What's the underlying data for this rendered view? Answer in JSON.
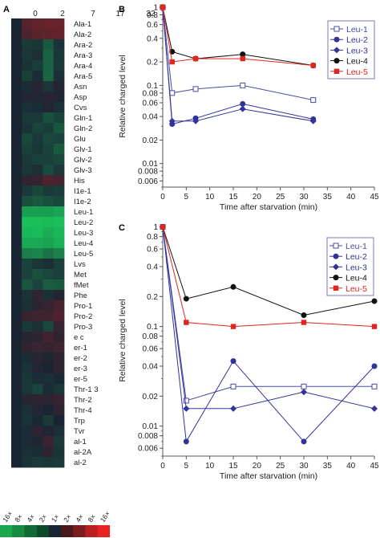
{
  "panel_letters": [
    "A",
    "B",
    "C"
  ],
  "heatmap": {
    "columns": [
      "0",
      "2",
      "7",
      "17",
      "32"
    ],
    "rows": [
      "Ala-1",
      "Ala-2",
      "Ara-2",
      "Ara-3",
      "Ara-4",
      "Ara-5",
      "Asn",
      "Asp",
      "Cvs",
      "Gln-1",
      "Gln-2",
      "Glu",
      "Glv-1",
      "Glv-2",
      "Glv-3",
      "His",
      "I1e-1",
      "I1e-2",
      "Leu-1",
      "Leu-2",
      "Leu-3",
      "Leu-4",
      "Leu-5",
      "Lvs",
      "Met",
      "fMet",
      "Phe",
      "Pro-1",
      "Pro-2",
      "Pro-3",
      "e c",
      "er-1",
      "er-2",
      "er-3",
      "er-5",
      "Thr-1 3",
      "Thr-2",
      "Thr-4",
      "Trp",
      "Tvr",
      "al-1",
      "al-2A",
      "al-2"
    ],
    "values": [
      [
        0,
        1.3,
        1.6,
        1.7,
        1.7
      ],
      [
        0,
        1.1,
        1.4,
        1.5,
        1.6
      ],
      [
        0,
        -0.6,
        -0.5,
        -1.5,
        -0.4
      ],
      [
        0,
        -0.5,
        -0.3,
        -1.8,
        -0.5
      ],
      [
        0,
        -0.4,
        -0.7,
        -1.8,
        -0.6
      ],
      [
        0,
        -0.8,
        -0.2,
        -1.9,
        -0.3
      ],
      [
        0,
        -0.2,
        0.3,
        -0.5,
        0.2
      ],
      [
        0,
        0.2,
        0.2,
        0.3,
        0.1
      ],
      [
        0,
        -0.3,
        -0.2,
        0.2,
        -0.3
      ],
      [
        0,
        -0.6,
        -0.6,
        -1.3,
        -0.9
      ],
      [
        0,
        -0.4,
        -0.9,
        -0.7,
        -1.4
      ],
      [
        0,
        -1.0,
        -0.6,
        -1.0,
        -0.9
      ],
      [
        0,
        -0.8,
        -0.5,
        -0.9,
        -1.5
      ],
      [
        0,
        -0.6,
        -0.8,
        -0.8,
        -1.0
      ],
      [
        0,
        -0.5,
        -0.3,
        -1.1,
        -0.6
      ],
      [
        0,
        0.5,
        0.6,
        1.1,
        0.9
      ],
      [
        0,
        -0.6,
        -1.0,
        -0.6,
        -0.7
      ],
      [
        0,
        -1.2,
        -1.5,
        -1.2,
        -1.0
      ],
      [
        0,
        -3.6,
        -3.6,
        -3.5,
        -3.8
      ],
      [
        0,
        -4.6,
        -4.6,
        -4.4,
        -4.8
      ],
      [
        0,
        -4.3,
        -4.4,
        -4.0,
        -4.3
      ],
      [
        0,
        -3.9,
        -3.9,
        -3.7,
        -4.1
      ],
      [
        0,
        -2.6,
        -2.8,
        -2.3,
        -2.7
      ],
      [
        0,
        -0.9,
        -0.5,
        -0.3,
        -0.8
      ],
      [
        0,
        -0.9,
        -1.2,
        -1.0,
        -0.8
      ],
      [
        0,
        -1.4,
        -0.9,
        -1.6,
        -1.5
      ],
      [
        0,
        -0.4,
        0.5,
        -0.3,
        0.2
      ],
      [
        0,
        -0.3,
        0.4,
        0.6,
        1.0
      ],
      [
        0,
        0.6,
        0.8,
        0.8,
        1.1
      ],
      [
        0,
        -0.6,
        -0.3,
        -1.0,
        0.6
      ],
      [
        0,
        0.3,
        0.5,
        0.8,
        0.5
      ],
      [
        0,
        0.5,
        0.7,
        0.6,
        0.8
      ],
      [
        0,
        -0.2,
        0.3,
        0.1,
        0.4
      ],
      [
        0,
        -0.4,
        0.2,
        0.0,
        0.5
      ],
      [
        0,
        -0.5,
        -0.2,
        -0.3,
        -0.1
      ],
      [
        0,
        -0.5,
        -0.9,
        -0.2,
        -0.5
      ],
      [
        0,
        0.3,
        0.5,
        0.4,
        0.6
      ],
      [
        0,
        -0.3,
        0.2,
        0.0,
        0.4
      ],
      [
        0,
        -0.4,
        -0.1,
        -0.6,
        0.0
      ],
      [
        0,
        -0.2,
        0.4,
        0.1,
        -0.3
      ],
      [
        0,
        -0.2,
        0.1,
        0.7,
        -0.6
      ],
      [
        0,
        -0.3,
        -0.2,
        0.5,
        -0.4
      ],
      [
        0,
        -0.4,
        -0.6,
        -0.5,
        -0.6
      ]
    ],
    "scale_labels": [
      "16×",
      "8×",
      "4×",
      "2×",
      "1×",
      "2×",
      "4×",
      "8×",
      "16×"
    ],
    "scale_colors": [
      "#1aa84c",
      "#168a40",
      "#116a34",
      "#0d4a2a",
      "#1a2533",
      "#4a1a1a",
      "#7c1d1d",
      "#b81f1f",
      "#e82323"
    ]
  },
  "series_colors": {
    "Leu-1": "#4a4aa6",
    "Leu-2": "#32329c",
    "Leu-3": "#32329c",
    "Leu-4": "#111111",
    "Leu-5": "#e0251e"
  },
  "series_markers": {
    "Leu-1": "open-square",
    "Leu-2": "circle",
    "Leu-3": "diamond",
    "Leu-4": "circle",
    "Leu-5": "square"
  },
  "chart_data": [
    {
      "panel": "B",
      "type": "line",
      "xlabel": "Time after starvation (min)",
      "ylabel": "Relative charged level",
      "yscale": "log",
      "xlim": [
        0,
        45
      ],
      "ylim": [
        0.005,
        1.05
      ],
      "xticks": [
        "0",
        "5",
        "10",
        "15",
        "20",
        "25",
        "30",
        "35",
        "40",
        "45"
      ],
      "yticks": [
        "0.006",
        "0.008",
        "0.01",
        "0.02",
        "0.04",
        "0.06",
        "0.08",
        "0.1",
        "0.2",
        "0.4",
        "0.6",
        "0.8",
        "1"
      ],
      "legend_position": "top-right",
      "series": [
        {
          "name": "Leu-1",
          "x": [
            0,
            2,
            7,
            17,
            32
          ],
          "values": [
            1,
            0.08,
            0.09,
            0.1,
            0.065
          ]
        },
        {
          "name": "Leu-2",
          "x": [
            0,
            2,
            7,
            17,
            32
          ],
          "values": [
            1,
            0.032,
            0.038,
            0.058,
            0.037
          ]
        },
        {
          "name": "Leu-3",
          "x": [
            0,
            2,
            7,
            17,
            32
          ],
          "values": [
            1,
            0.035,
            0.035,
            0.05,
            0.035
          ]
        },
        {
          "name": "Leu-4",
          "x": [
            0,
            2,
            7,
            17,
            32
          ],
          "values": [
            1,
            0.27,
            0.22,
            0.25,
            0.18
          ]
        },
        {
          "name": "Leu-5",
          "x": [
            0,
            2,
            7,
            17,
            32
          ],
          "values": [
            1,
            0.2,
            0.22,
            0.22,
            0.18
          ]
        }
      ]
    },
    {
      "panel": "C",
      "type": "line",
      "xlabel": "Time after starvation (min)",
      "ylabel": "Relative charged level",
      "yscale": "log",
      "xlim": [
        0,
        45
      ],
      "ylim": [
        0.005,
        1.05
      ],
      "xticks": [
        "0",
        "5",
        "10",
        "15",
        "20",
        "25",
        "30",
        "35",
        "40",
        "45"
      ],
      "yticks": [
        "0.006",
        "0.008",
        "0.01",
        "0.02",
        "0.04",
        "0.06",
        "0.08",
        "0.1",
        "0.2",
        "0.4",
        "0.6",
        "0.8",
        "1"
      ],
      "legend_position": "top-right",
      "series": [
        {
          "name": "Leu-1",
          "x": [
            0,
            5,
            15,
            30,
            45
          ],
          "values": [
            1,
            0.018,
            0.025,
            0.025,
            0.025
          ]
        },
        {
          "name": "Leu-2",
          "x": [
            0,
            5,
            15,
            30,
            45
          ],
          "values": [
            1,
            0.007,
            0.045,
            0.007,
            0.04
          ]
        },
        {
          "name": "Leu-3",
          "x": [
            0,
            5,
            15,
            30,
            45
          ],
          "values": [
            1,
            0.015,
            0.015,
            0.022,
            0.015
          ]
        },
        {
          "name": "Leu-4",
          "x": [
            0,
            5,
            15,
            30,
            45
          ],
          "values": [
            1,
            0.19,
            0.25,
            0.13,
            0.18
          ]
        },
        {
          "name": "Leu-5",
          "x": [
            0,
            5,
            15,
            30,
            45
          ],
          "values": [
            1,
            0.11,
            0.1,
            0.11,
            0.1
          ]
        }
      ]
    }
  ]
}
